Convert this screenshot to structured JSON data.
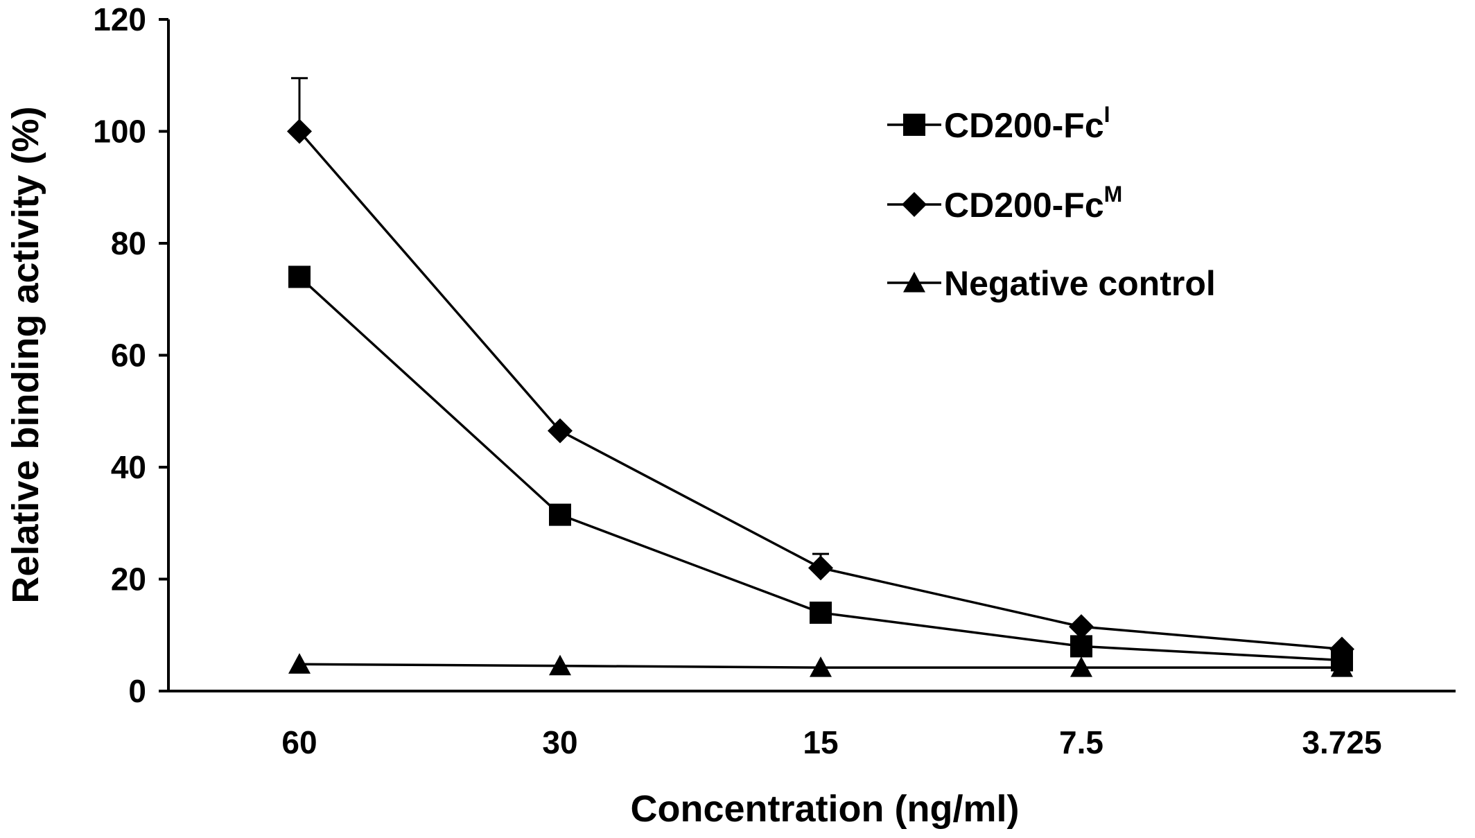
{
  "chart_data": {
    "type": "line",
    "xlabel": "Concentration (ng/ml)",
    "ylabel": "Relative binding activity (%)",
    "categories": [
      "60",
      "30",
      "15",
      "7.5",
      "3.725"
    ],
    "ylim": [
      0,
      120
    ],
    "yticks": [
      0,
      20,
      40,
      60,
      80,
      100,
      120
    ],
    "grid": false,
    "legend_position": "top-right",
    "series": [
      {
        "name": "CD200-Fc",
        "name_sup": "I",
        "marker": "square",
        "values": [
          74,
          31.5,
          14,
          8,
          5.5
        ],
        "errors": [
          0,
          0,
          0,
          0,
          0
        ]
      },
      {
        "name": "CD200-Fc",
        "name_sup": "M",
        "marker": "diamond",
        "values": [
          100,
          46.5,
          22,
          11.5,
          7.5
        ],
        "errors": [
          9.5,
          0,
          2.5,
          0,
          0
        ]
      },
      {
        "name": "Negative control",
        "name_sup": "",
        "marker": "triangle",
        "values": [
          4.8,
          4.5,
          4.2,
          4.2,
          4.2
        ],
        "errors": [
          0,
          0,
          0,
          0,
          0
        ]
      }
    ]
  }
}
